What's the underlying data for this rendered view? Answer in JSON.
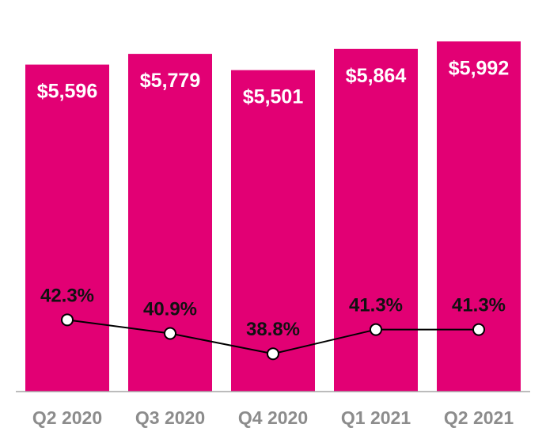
{
  "chart_data": {
    "type": "bar",
    "title": "",
    "xlabel": "",
    "ylabel": "",
    "categories": [
      "Q2 2020",
      "Q3 2020",
      "Q4 2020",
      "Q1 2021",
      "Q2 2021"
    ],
    "series": [
      {
        "type": "bar",
        "values": [
          5596,
          5779,
          5501,
          5864,
          5992
        ],
        "labels": [
          "$5,596",
          "$5,779",
          "$5,501",
          "$5,864",
          "$5,992"
        ],
        "color": "#e20074"
      },
      {
        "type": "line",
        "values": [
          42.3,
          40.9,
          38.8,
          41.3,
          41.3
        ],
        "labels": [
          "42.3%",
          "40.9%",
          "38.8%",
          "41.3%",
          "41.3%"
        ],
        "color": "#000000"
      }
    ],
    "ylim": [
      0,
      6200
    ],
    "grid": false,
    "legend": "none"
  }
}
